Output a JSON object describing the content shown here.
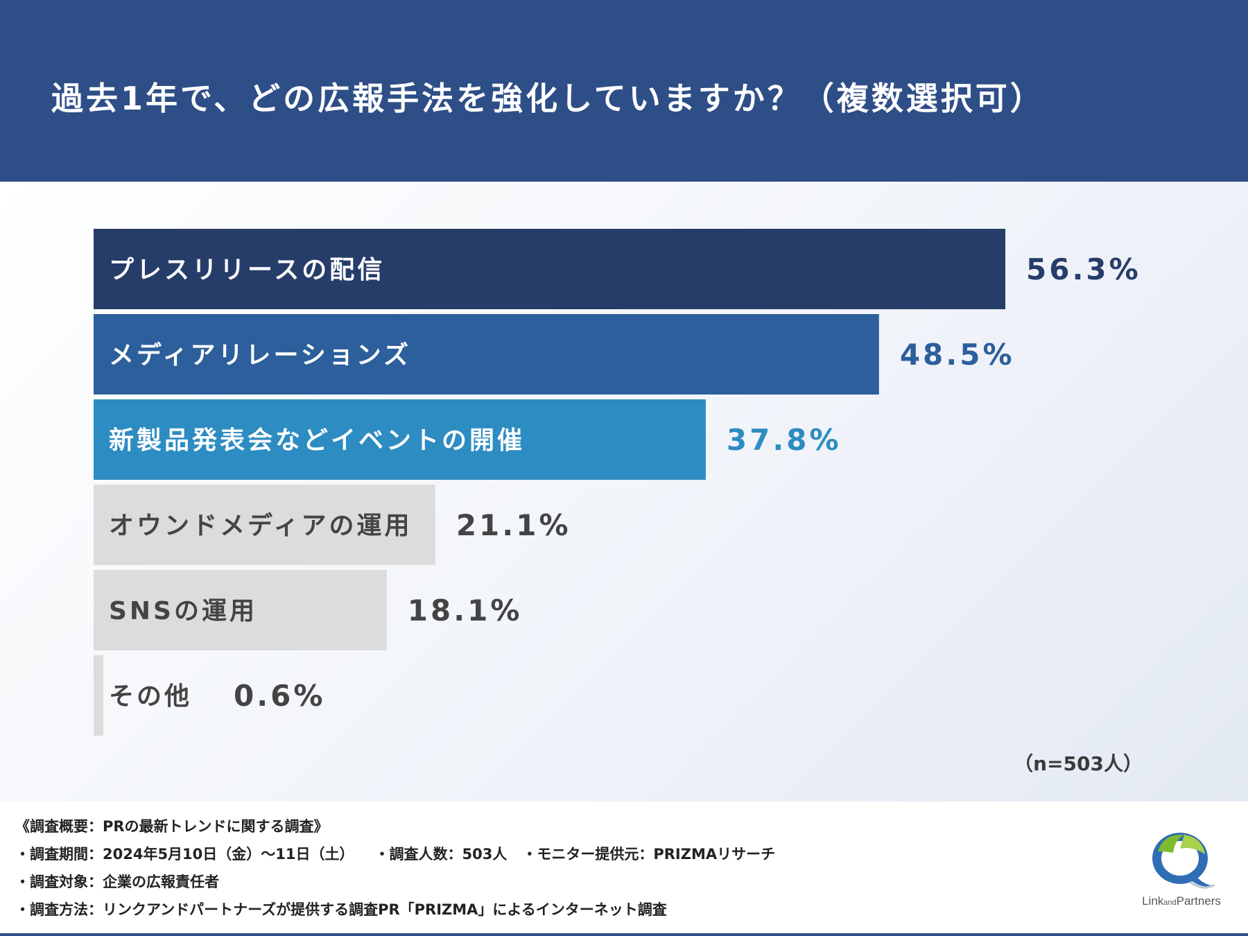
{
  "header": {
    "title": "過去1年で、どの広報手法を強化していますか？（複数選択可）"
  },
  "chart_data": {
    "type": "bar",
    "orientation": "horizontal",
    "title": "過去1年で、どの広報手法を強化していますか？（複数選択可）",
    "categories": [
      "プレスリリースの配信",
      "メディアリレーションズ",
      "新製品発表会などイベントの開催",
      "オウンドメディアの運用",
      "SNSの運用",
      "その他"
    ],
    "values": [
      56.3,
      48.5,
      37.8,
      21.1,
      18.1,
      0.6
    ],
    "value_labels": [
      "56.3%",
      "48.5%",
      "37.8%",
      "21.1%",
      "18.1%",
      "0.6%"
    ],
    "xlim": [
      0,
      56.3
    ],
    "colors": [
      "#273d69",
      "#2c5f9b",
      "#2d8cc1",
      "#dcdcdc",
      "#dcdcdc",
      "#dcdcdc"
    ],
    "label_colors": [
      "#ffffff",
      "#ffffff",
      "#ffffff",
      "#444444",
      "#444444",
      "#444444"
    ],
    "value_colors": [
      "#273d69",
      "#2c5f9b",
      "#2d8cc1",
      "#444444",
      "#444444",
      "#444444"
    ],
    "sample_note": "（n=503人）"
  },
  "footer": {
    "overview": "《調査概要：PRの最新トレンドに関する調査》",
    "period": "・調査期間：2024年5月10日（金）〜11日（土）",
    "respondents": "・調査人数：503人",
    "provider": "・モニター提供元：PRIZMAリサーチ",
    "target": "・調査対象：企業の広報責任者",
    "method": "・調査方法：リンクアンドパートナーズが提供する調査PR「PRIZMA」によるインターネット調査"
  },
  "logo": {
    "text_main_1": "Link",
    "text_small": "and",
    "text_main_2": "Partners"
  }
}
